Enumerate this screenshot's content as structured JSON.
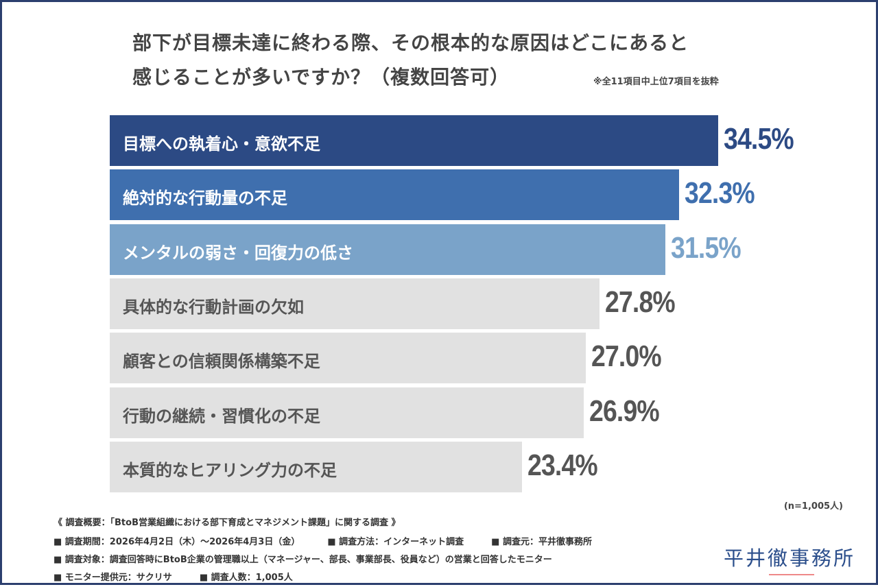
{
  "chart_data": {
    "type": "bar",
    "orientation": "horizontal",
    "title": "部下が目標未達に終わる際、その根本的な原因はどこにあると感じることが多いですか？（複数回答可）",
    "title_lines": [
      "部下が目標未達に終わる際、その根本的な原因はどこにあると",
      "感じることが多いですか？（複数回答可）"
    ],
    "subtitle": "※全11項目中上位7項目を抜粋",
    "categories": [
      "目標への執着心・意欲不足",
      "絶対的な行動量の不足",
      "メンタルの弱さ・回復力の低さ",
      "具体的な行動計画の欠如",
      "顧客との信頼関係構築不足",
      "行動の継続・習慣化の不足",
      "本質的なヒアリング力の不足"
    ],
    "values": [
      34.5,
      32.3,
      31.5,
      27.8,
      27.0,
      26.9,
      23.4
    ],
    "value_labels": [
      "34.5%",
      "32.3%",
      "31.5%",
      "27.8%",
      "27.0%",
      "26.9%",
      "23.4%"
    ],
    "unit": "%",
    "bar_colors": [
      "#2c4a84",
      "#3f6fae",
      "#7aa3c9",
      "#e1e1e1",
      "#e1e1e1",
      "#e1e1e1",
      "#e1e1e1"
    ],
    "label_colors": [
      "#ffffff",
      "#ffffff",
      "#ffffff",
      "#555555",
      "#555555",
      "#555555",
      "#555555"
    ],
    "value_colors": [
      "#2c4a84",
      "#3f6fae",
      "#7aa3c9",
      "#555555",
      "#555555",
      "#555555",
      "#555555"
    ],
    "sample_note": "(n=1,005人)"
  },
  "footer": {
    "heading": "《 調査概要：「BtoB営業組織における部下育成とマネジメント課題」に関する調査 》",
    "period": "■ 調査期間：2026年4月2日（木）～2026年4月3日（金）",
    "method": "■ 調査方法：インターネット調査",
    "source": "■ 調査元：平井徹事務所",
    "target": "■ 調査対象：調査回答時にBtoB企業の管理職以上（マネージャー、部長、事業部長、役員など）の営業と回答したモニター",
    "provider": "■ モニター提供元：サクリサ",
    "count": "■ 調査人数：1,005人"
  },
  "logo": "平井徹事務所"
}
